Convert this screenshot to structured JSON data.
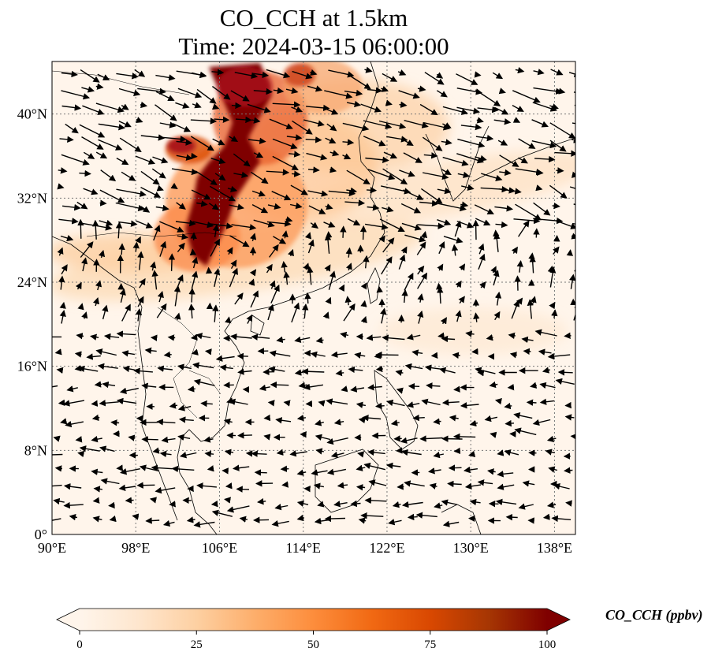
{
  "title": {
    "line1": "CO_CCH at 1.5km",
    "line2": "Time: 2024-03-15 06:00:00"
  },
  "map": {
    "lon_range": [
      90,
      140
    ],
    "lat_range": [
      0,
      45
    ],
    "lat_ticks": [
      {
        "value": 0,
        "label": "0°"
      },
      {
        "value": 8,
        "label": "8°N"
      },
      {
        "value": 16,
        "label": "16°N"
      },
      {
        "value": 24,
        "label": "24°N"
      },
      {
        "value": 32,
        "label": "32°N"
      },
      {
        "value": 40,
        "label": "40°N"
      }
    ],
    "lon_ticks": [
      {
        "value": 90,
        "label": "90°E"
      },
      {
        "value": 98,
        "label": "98°E"
      },
      {
        "value": 106,
        "label": "106°E"
      },
      {
        "value": 114,
        "label": "114°E"
      },
      {
        "value": 122,
        "label": "122°E"
      },
      {
        "value": 130,
        "label": "130°E"
      },
      {
        "value": 138,
        "label": "138°E"
      }
    ],
    "gridlines": true,
    "coastlines": true,
    "field_name": "CO_CCH",
    "wind_vectors": true
  },
  "colorbar": {
    "label": "CO_CCH (ppbv)",
    "min": 0,
    "max": 100,
    "ticks": [
      {
        "value": 0,
        "label": "0"
      },
      {
        "value": 25,
        "label": "25"
      },
      {
        "value": 50,
        "label": "50"
      },
      {
        "value": 75,
        "label": "75"
      },
      {
        "value": 100,
        "label": "100"
      }
    ],
    "colors": [
      "#fff5eb",
      "#fee6ce",
      "#fdd0a2",
      "#fdae6b",
      "#fd8d3c",
      "#f16913",
      "#d94801",
      "#a63603",
      "#7f0000"
    ],
    "extend": "both"
  }
}
